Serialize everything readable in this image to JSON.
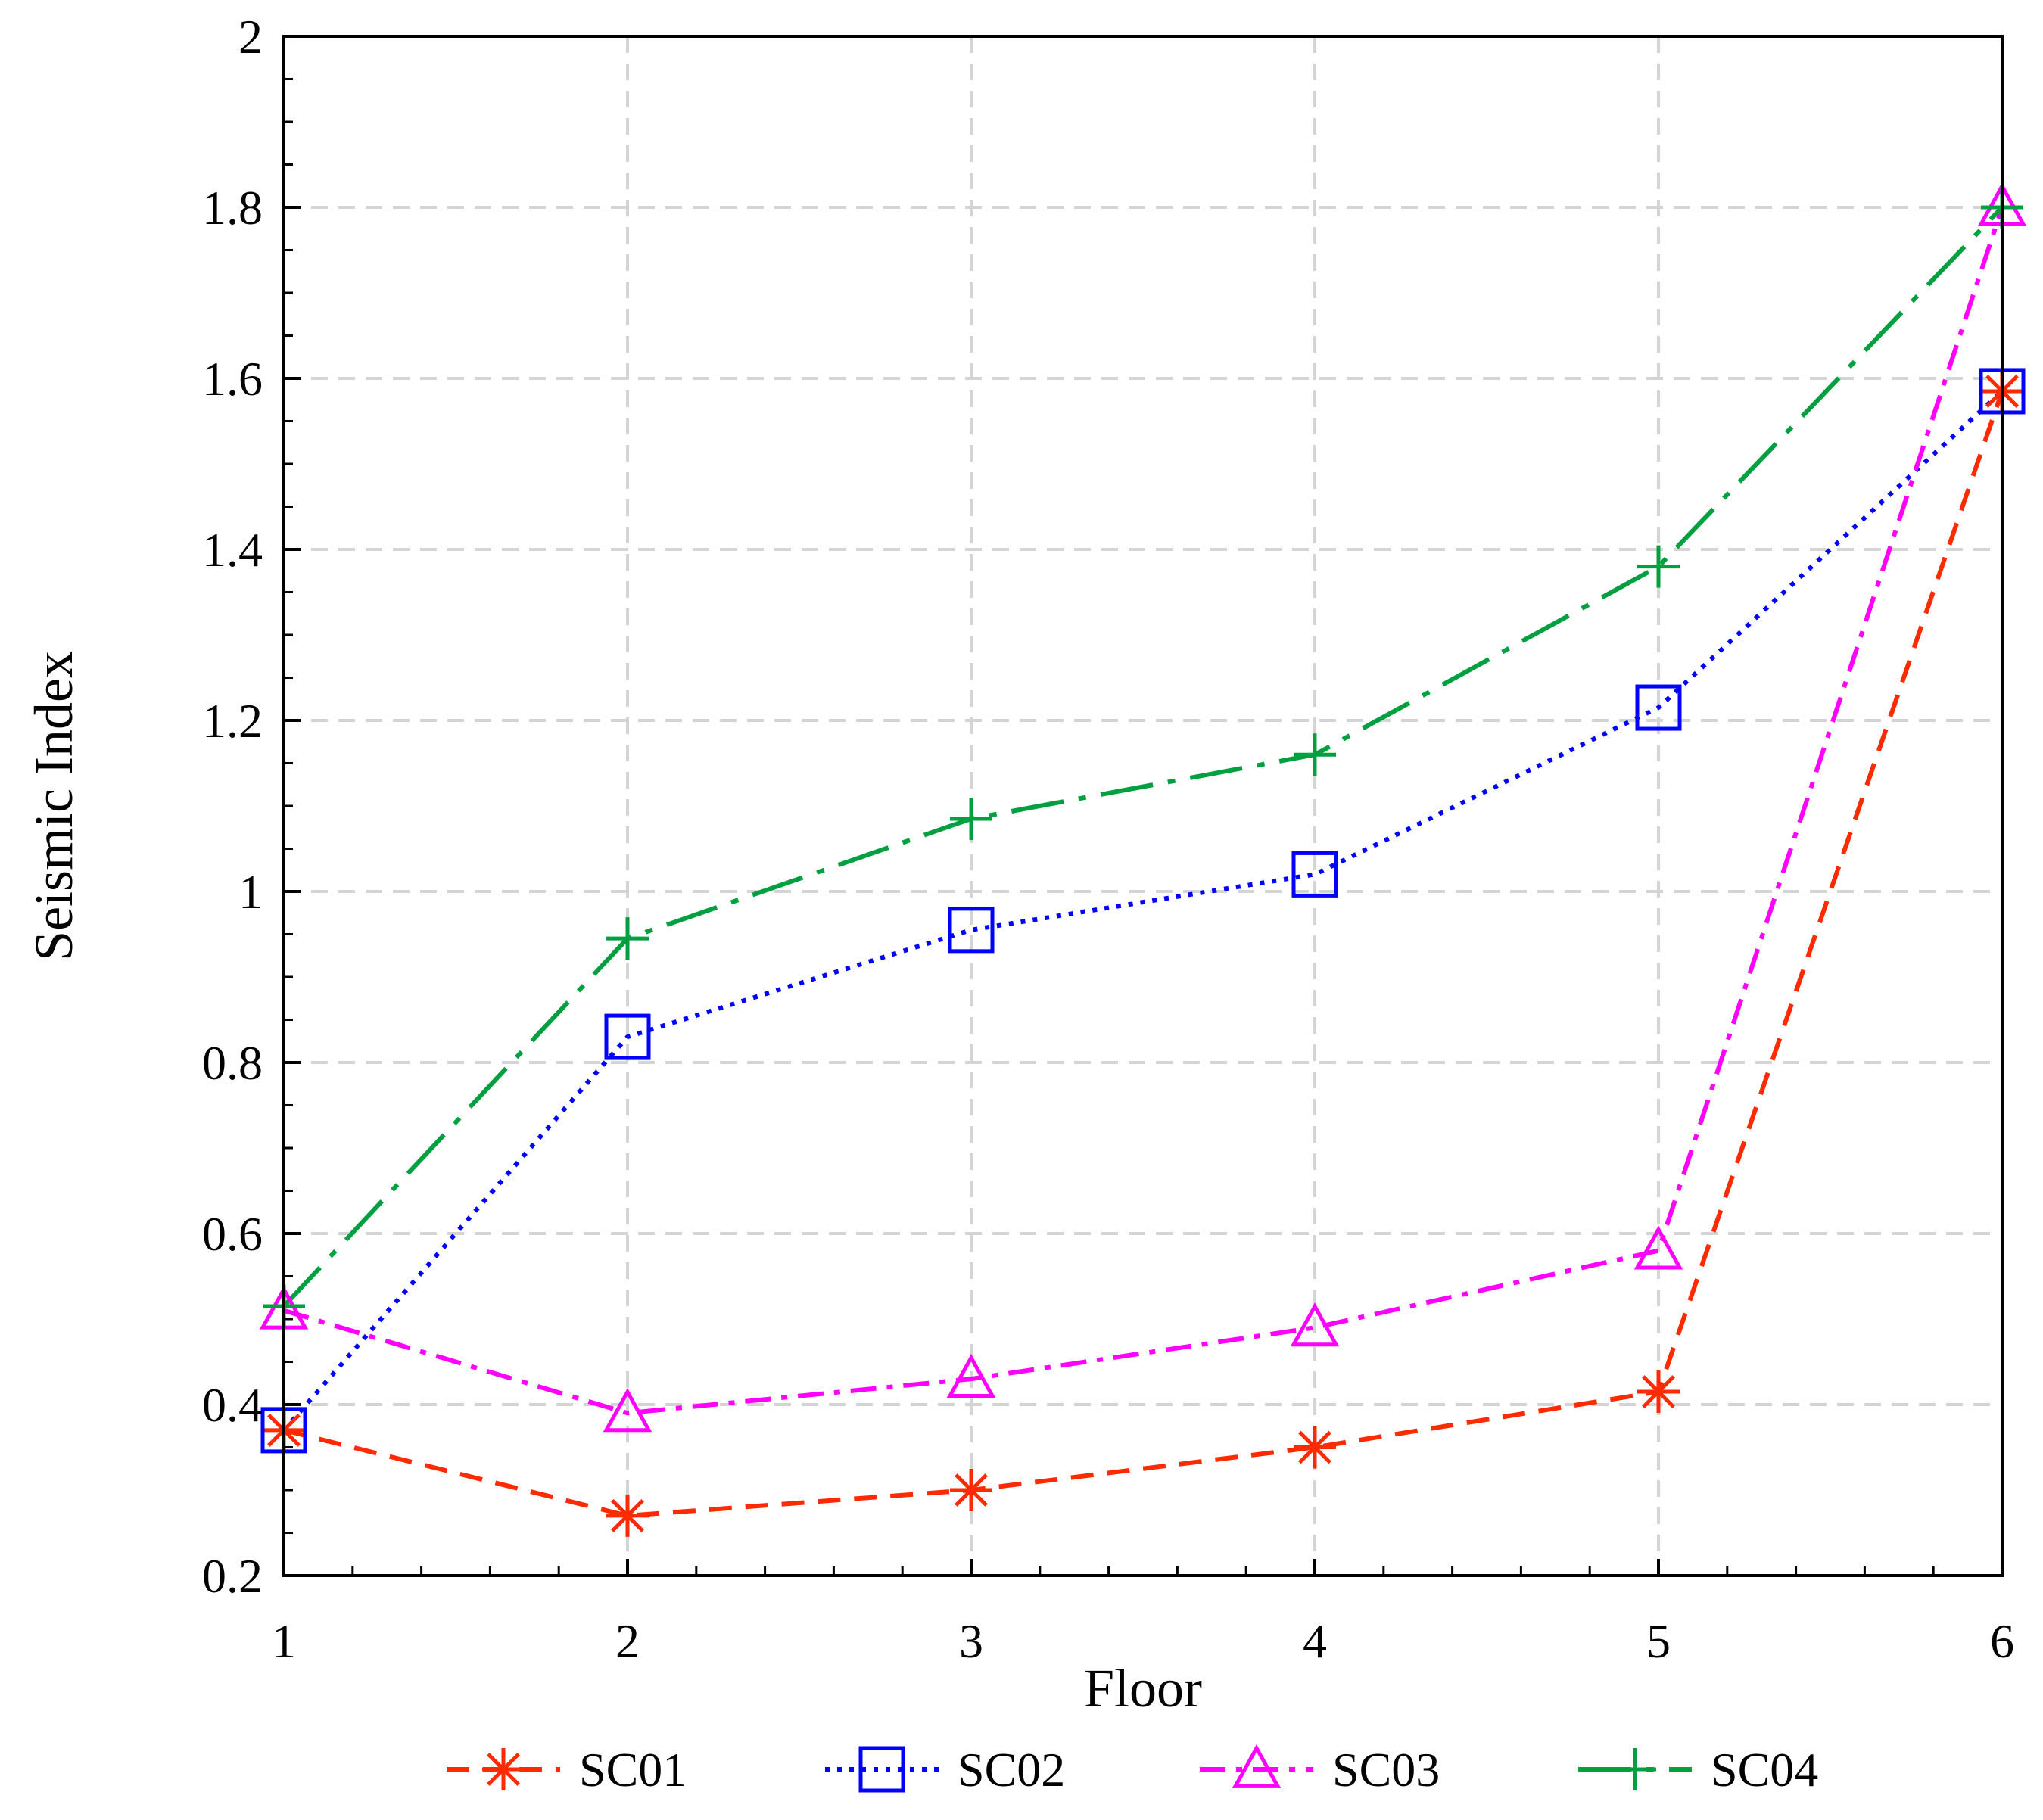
{
  "chart_data": {
    "type": "line",
    "title": "",
    "xlabel": "Floor",
    "ylabel": "Seismic Index",
    "x": [
      1,
      2,
      3,
      4,
      5,
      6
    ],
    "xlim": [
      1,
      6
    ],
    "ylim": [
      0.2,
      2
    ],
    "xticks": [
      "1",
      "2",
      "3",
      "4",
      "5",
      "6"
    ],
    "yticks": [
      "0.2",
      "0.4",
      "0.6",
      "0.8",
      "1",
      "1.2",
      "1.4",
      "1.6",
      "1.8",
      "2"
    ],
    "ytick_values": [
      0.2,
      0.4,
      0.6,
      0.8,
      1.0,
      1.2,
      1.4,
      1.6,
      1.8,
      2.0
    ],
    "grid": true,
    "legend_position": "bottom",
    "series": [
      {
        "name": "SC01",
        "values": [
          0.37,
          0.27,
          0.3,
          0.35,
          0.415,
          1.585
        ],
        "color": "#ff2a00",
        "marker": "asterisk",
        "line": "dashed"
      },
      {
        "name": "SC02",
        "values": [
          0.37,
          0.83,
          0.955,
          1.02,
          1.215,
          1.585
        ],
        "color": "#0000ff",
        "marker": "square",
        "line": "dotted"
      },
      {
        "name": "SC03",
        "values": [
          0.51,
          0.39,
          0.43,
          0.49,
          0.58,
          1.8
        ],
        "color": "#ff00ff",
        "marker": "triangle",
        "line": "dashdot"
      },
      {
        "name": "SC04",
        "values": [
          0.515,
          0.945,
          1.085,
          1.16,
          1.38,
          1.8
        ],
        "color": "#00a040",
        "marker": "plus",
        "line": "longdashdot"
      }
    ]
  }
}
